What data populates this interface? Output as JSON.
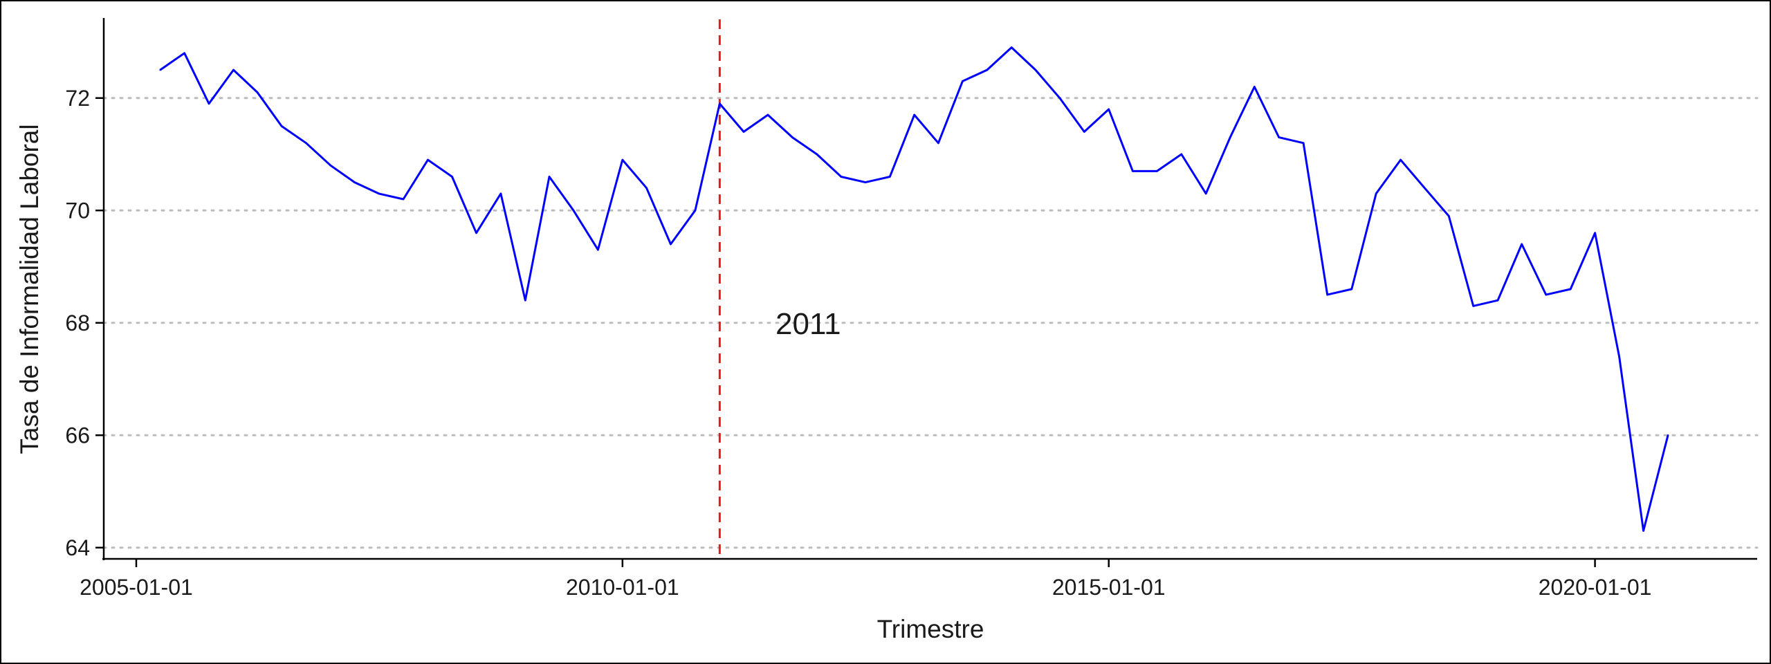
{
  "chart_data": {
    "type": "line",
    "xlabel": "Trimestre",
    "ylabel": "Tasa de Informalidad Laboral",
    "x_ticks": [
      "2005-01-01",
      "2010-01-01",
      "2015-01-01",
      "2020-01-01"
    ],
    "y_ticks": [
      64,
      66,
      68,
      70,
      72
    ],
    "xlim": [
      "2004-09-01",
      "2021-09-01"
    ],
    "ylim": [
      63.8,
      73.4
    ],
    "grid": "horizontal dotted",
    "reference_line": {
      "x": "2011-01-01",
      "label": "2011",
      "color": "#e41a1c",
      "style": "dashed"
    },
    "series": [
      {
        "color": "#0000ff",
        "x": [
          "2005-04-01",
          "2005-07-01",
          "2005-10-01",
          "2006-01-01",
          "2006-04-01",
          "2006-07-01",
          "2006-10-01",
          "2007-01-01",
          "2007-04-01",
          "2007-07-01",
          "2007-10-01",
          "2008-01-01",
          "2008-04-01",
          "2008-07-01",
          "2008-10-01",
          "2009-01-01",
          "2009-04-01",
          "2009-07-01",
          "2009-10-01",
          "2010-01-01",
          "2010-04-01",
          "2010-07-01",
          "2010-10-01",
          "2011-01-01",
          "2011-04-01",
          "2011-07-01",
          "2011-10-01",
          "2012-01-01",
          "2012-04-01",
          "2012-07-01",
          "2012-10-01",
          "2013-01-01",
          "2013-04-01",
          "2013-07-01",
          "2013-10-01",
          "2014-01-01",
          "2014-04-01",
          "2014-07-01",
          "2014-10-01",
          "2015-01-01",
          "2015-04-01",
          "2015-07-01",
          "2015-10-01",
          "2016-01-01",
          "2016-04-01",
          "2016-07-01",
          "2016-10-01",
          "2017-01-01",
          "2017-04-01",
          "2017-07-01",
          "2017-10-01",
          "2018-01-01",
          "2018-04-01",
          "2018-07-01",
          "2018-10-01",
          "2019-01-01",
          "2019-04-01",
          "2019-07-01",
          "2019-10-01",
          "2020-01-01",
          "2020-04-01",
          "2020-07-01",
          "2020-10-01"
        ],
        "values": [
          72.5,
          72.8,
          71.9,
          72.5,
          72.1,
          71.5,
          71.2,
          70.8,
          70.5,
          70.3,
          70.2,
          70.9,
          70.6,
          69.6,
          70.3,
          68.4,
          70.6,
          70.0,
          69.3,
          70.9,
          70.4,
          69.4,
          70.0,
          71.9,
          71.4,
          71.7,
          71.3,
          71.0,
          70.6,
          70.5,
          70.6,
          71.7,
          71.2,
          72.3,
          72.5,
          72.9,
          72.5,
          72.0,
          71.4,
          71.8,
          70.7,
          70.7,
          71.0,
          70.3,
          71.3,
          72.2,
          71.3,
          71.2,
          68.5,
          68.6,
          70.3,
          70.9,
          70.4,
          69.9,
          68.3,
          68.4,
          69.4,
          68.5,
          68.6,
          69.6,
          67.4,
          64.3,
          66.0
        ]
      }
    ]
  }
}
